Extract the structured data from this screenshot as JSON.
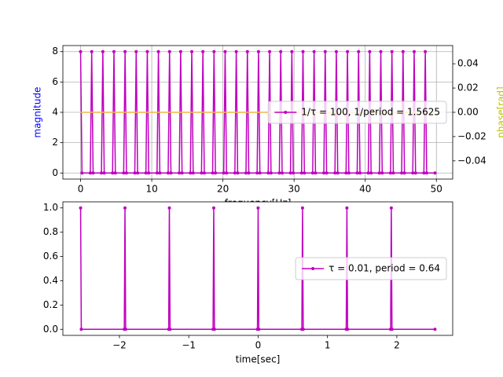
{
  "chart_data": [
    {
      "type": "line",
      "xlabel": "frequency[Hz]",
      "ylabel": "magnitude",
      "y2label": "phase[rad]",
      "ylabel_color": "#0000ff",
      "y2label_color": "#bfbf00",
      "xlim": [
        -2.49,
        52.29
      ],
      "ylim": [
        -0.4,
        8.4
      ],
      "y2lim": [
        -0.055,
        0.055
      ],
      "xticks": [
        0,
        10,
        20,
        30,
        40,
        50
      ],
      "yticks": [
        0,
        2,
        4,
        6,
        8
      ],
      "y2ticks": [
        {
          "value": -0.04,
          "label": "−0.04"
        },
        {
          "value": -0.02,
          "label": "−0.02"
        },
        {
          "value": 0,
          "label": "0.00"
        },
        {
          "value": 0.02,
          "label": "0.02"
        },
        {
          "value": 0.04,
          "label": "0.04"
        }
      ],
      "grid": true,
      "legend": "center right",
      "series": [
        {
          "name": "1/τ = 100, 1/period = 1.5625",
          "color": "#bf00bf",
          "markers": true,
          "x": [
            0,
            0.1953,
            1.3672,
            1.5625,
            1.7578,
            2.9297,
            3.125,
            3.3203,
            4.4922,
            4.6875,
            4.8828,
            6.0547,
            6.25,
            6.4453,
            7.6172,
            7.8125,
            8.0078,
            9.1797,
            9.375,
            9.5703,
            10.7422,
            10.9375,
            11.1328,
            12.3047,
            12.5,
            12.6953,
            13.8672,
            14.0625,
            14.2578,
            15.4297,
            15.625,
            15.8203,
            16.9922,
            17.1875,
            17.3828,
            18.5547,
            18.75,
            18.9453,
            20.1172,
            20.3125,
            20.5078,
            21.6797,
            21.875,
            22.0703,
            23.2422,
            23.4375,
            23.6328,
            24.8047,
            25,
            25.1953,
            26.3672,
            26.5625,
            26.7578,
            27.9297,
            28.125,
            28.3203,
            29.4922,
            29.6875,
            29.8828,
            31.0547,
            31.25,
            31.4453,
            32.6172,
            32.8125,
            33.0078,
            34.1797,
            34.375,
            34.5703,
            35.7422,
            35.9375,
            36.1328,
            37.3047,
            37.5,
            37.6953,
            38.8672,
            39.0625,
            39.2578,
            40.4297,
            40.625,
            40.8203,
            41.9922,
            42.1875,
            42.3828,
            43.5547,
            43.75,
            43.9453,
            45.1172,
            45.3125,
            45.5078,
            46.6797,
            46.875,
            47.0703,
            48.2422,
            48.4375,
            48.6328,
            49.8047
          ],
          "values": [
            8,
            0,
            0,
            8,
            0,
            0,
            8,
            0,
            0,
            8,
            0,
            0,
            8,
            0,
            0,
            8,
            0,
            0,
            8,
            0,
            0,
            8,
            0,
            0,
            8,
            0,
            0,
            8,
            0,
            0,
            8,
            0,
            0,
            8,
            0,
            0,
            8,
            0,
            0,
            8,
            0,
            0,
            8,
            0,
            0,
            8,
            0,
            0,
            8,
            0,
            0,
            8,
            0,
            0,
            8,
            0,
            0,
            8,
            0,
            0,
            8,
            0,
            0,
            8,
            0,
            0,
            8,
            0,
            0,
            8,
            0,
            0,
            8,
            0,
            0,
            8,
            0,
            0,
            8,
            0,
            0,
            8,
            0,
            0,
            8,
            0,
            0,
            8,
            0,
            0,
            8,
            0,
            0,
            8,
            0,
            0
          ]
        },
        {
          "color": "#f2b54a",
          "axis": "y2",
          "markers": false,
          "x": [
            0,
            49.8047
          ],
          "values": [
            0,
            0
          ]
        }
      ]
    },
    {
      "type": "line",
      "xlabel": "time[sec]",
      "xlim": [
        -2.8155,
        2.8055
      ],
      "ylim": [
        -0.05,
        1.05
      ],
      "xticks": [
        {
          "value": -2,
          "label": "−2"
        },
        {
          "value": -1,
          "label": "−1"
        },
        0,
        1,
        2
      ],
      "yticks": [
        {
          "value": 0,
          "label": "0.0"
        },
        {
          "value": 0.2,
          "label": "0.2"
        },
        {
          "value": 0.4,
          "label": "0.4"
        },
        {
          "value": 0.6,
          "label": "0.6"
        },
        {
          "value": 0.8,
          "label": "0.8"
        },
        {
          "value": 1,
          "label": "1.0"
        }
      ],
      "grid": false,
      "legend": "center right",
      "series": [
        {
          "name": "τ = 0.01, period = 0.64",
          "color": "#bf00bf",
          "markers": true,
          "x": [
            -2.56,
            -2.55,
            -1.93,
            -1.92,
            -1.91,
            -1.29,
            -1.28,
            -1.27,
            -0.65,
            -0.64,
            -0.63,
            -0.01,
            0,
            0.01,
            0.63,
            0.64,
            0.65,
            1.27,
            1.28,
            1.29,
            1.91,
            1.92,
            1.93,
            2.55
          ],
          "values": [
            1,
            0,
            0,
            1,
            0,
            0,
            1,
            0,
            0,
            1,
            0,
            0,
            1,
            0,
            0,
            1,
            0,
            0,
            1,
            0,
            0,
            1,
            0,
            0
          ]
        }
      ]
    }
  ]
}
